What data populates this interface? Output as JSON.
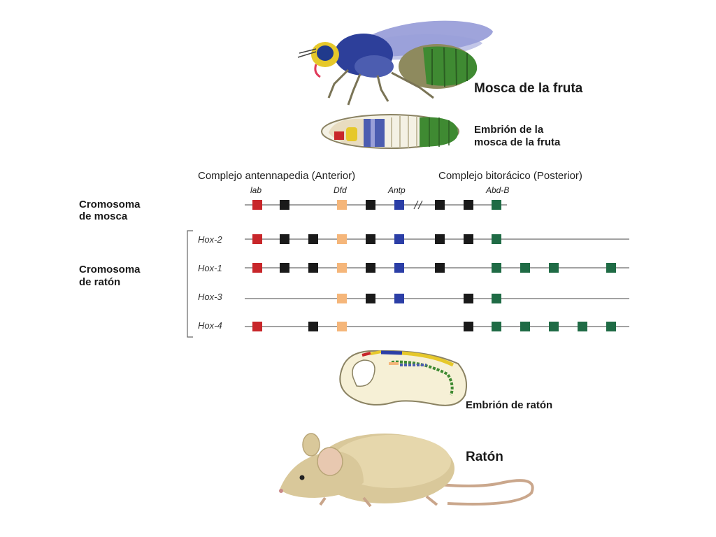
{
  "labels": {
    "fly": "Mosca de la fruta",
    "fly_embryo_line1": "Embrión de la",
    "fly_embryo_line2": "mosca de la fruta",
    "anterior_complex": "Complejo antennapedia (Anterior)",
    "posterior_complex": "Complejo bitorácico (Posterior)",
    "fly_chromosome_line1": "Cromosoma",
    "fly_chromosome_line2": "de mosca",
    "mouse_chromosome_line1": "Cromosoma",
    "mouse_chromosome_line2": "de ratón",
    "mouse_embryo": "Embrión de ratón",
    "mouse": "Ratón"
  },
  "gene_labels": [
    "lab",
    "Dfd",
    "Antp",
    "Abd-B"
  ],
  "colors": {
    "red": "#c8262a",
    "black": "#1a1a1a",
    "orange": "#f5b67a",
    "blue": "#2b3ea6",
    "green": "#1f6b45",
    "line": "#6a6a6a"
  },
  "rows": [
    {
      "name": "fly",
      "label": "",
      "genes": [
        "red",
        "black",
        "orange",
        "black",
        "blue",
        "black",
        "black",
        "green"
      ]
    },
    {
      "name": "hox-2",
      "label": "Hox-2",
      "genes": [
        "red",
        "black",
        "black",
        "orange",
        "black",
        "blue",
        "black",
        "black",
        "green"
      ]
    },
    {
      "name": "hox-1",
      "label": "Hox-1",
      "genes": [
        "red",
        "black",
        "black",
        "orange",
        "black",
        "blue",
        "black",
        "green",
        "green",
        "green",
        "green"
      ]
    },
    {
      "name": "hox-3",
      "label": "Hox-3",
      "genes": [
        "orange",
        "black",
        "blue",
        "black",
        "green"
      ]
    },
    {
      "name": "hox-4",
      "label": "Hox-4",
      "genes": [
        "red",
        "black",
        "orange",
        "black",
        "green",
        "green",
        "green",
        "green",
        "green"
      ]
    }
  ],
  "illustrations": [
    "fruit-fly",
    "fly-embryo",
    "mouse-embryo",
    "mouse"
  ]
}
